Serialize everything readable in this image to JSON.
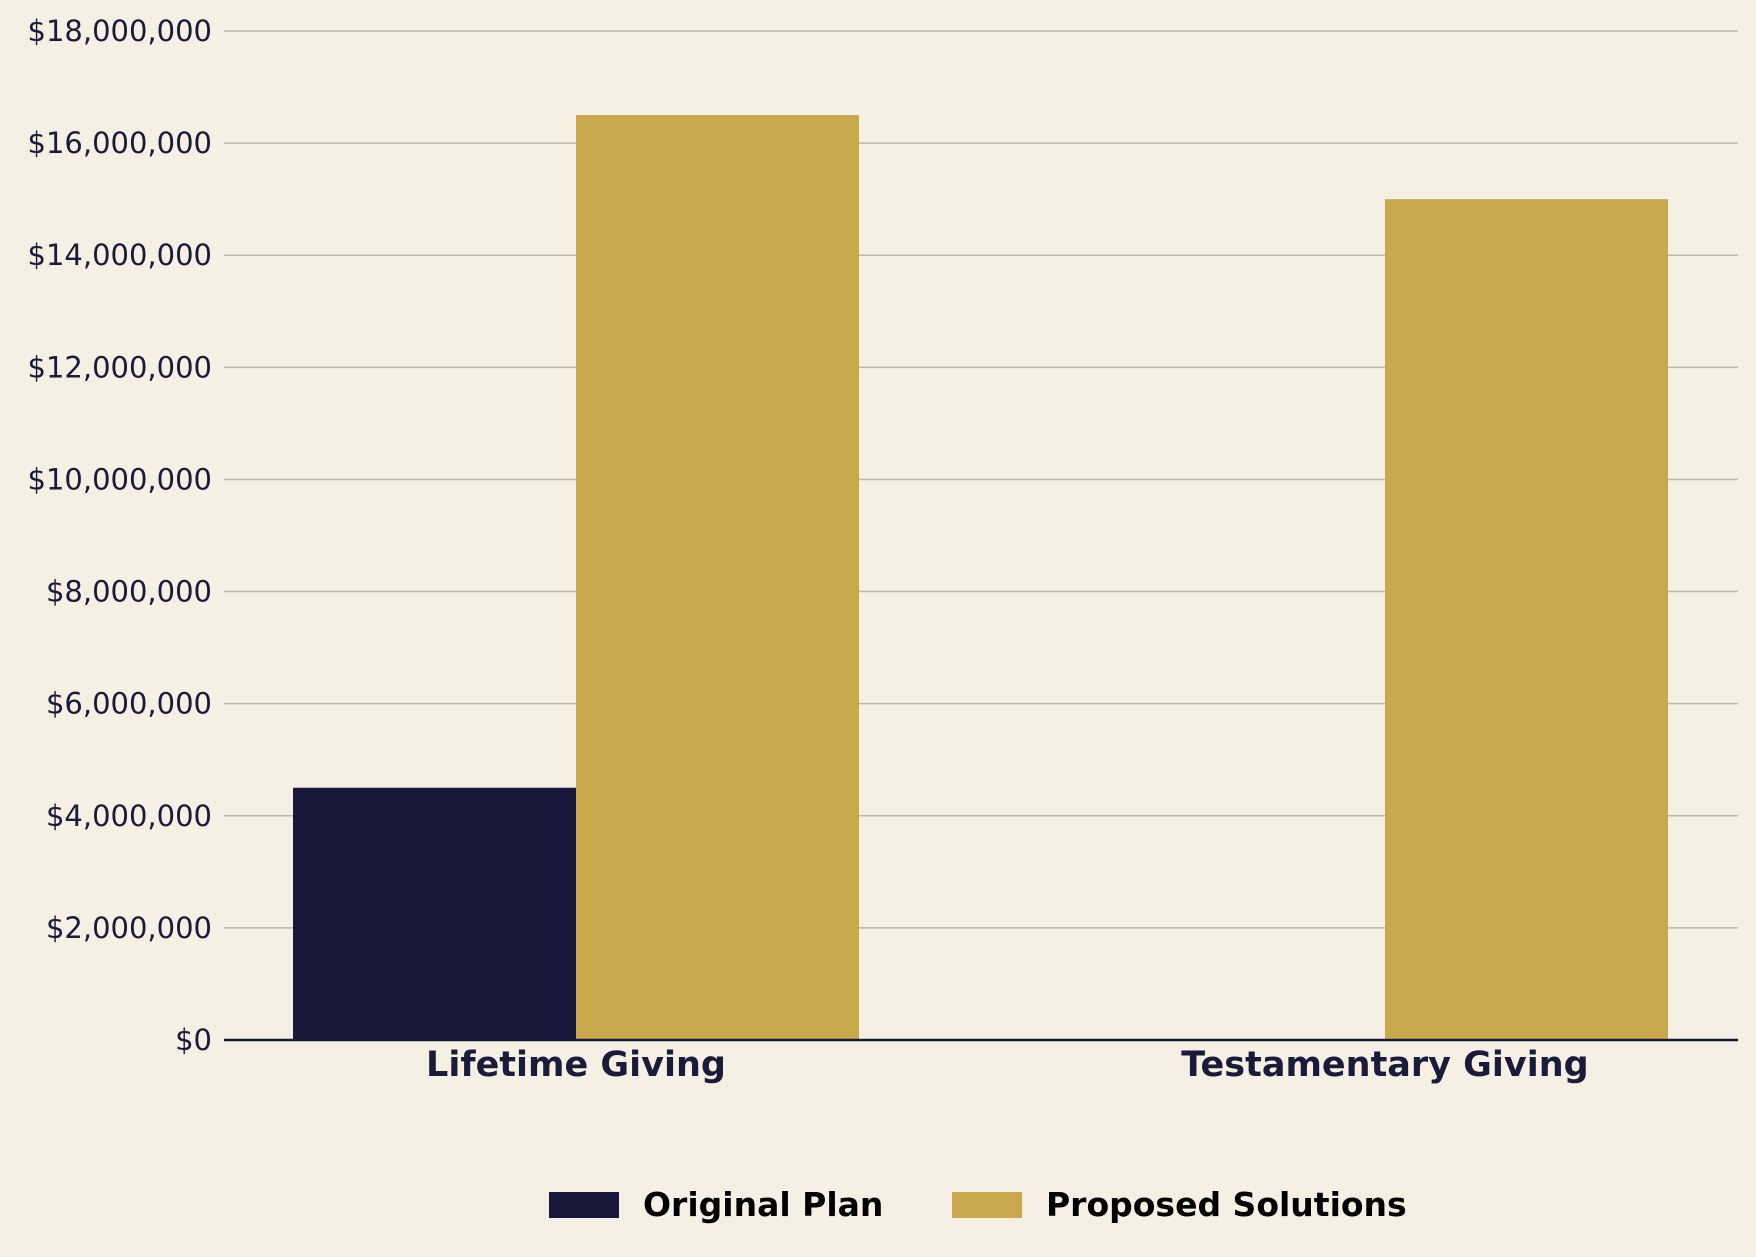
{
  "chart_data": {
    "type": "bar",
    "categories": [
      "Lifetime Giving",
      "Testamentary Giving"
    ],
    "series": [
      {
        "name": "Original Plan",
        "values": [
          4500000,
          0
        ],
        "color": "#19183a"
      },
      {
        "name": "Proposed Solutions",
        "values": [
          16500000,
          15000000
        ],
        "color": "#c9a74d"
      }
    ],
    "ylim": [
      0,
      18000000
    ],
    "yticks": [
      0,
      2000000,
      4000000,
      6000000,
      8000000,
      10000000,
      12000000,
      14000000,
      16000000,
      18000000
    ],
    "ytick_labels": [
      "$0",
      "$2,000,000",
      "$4,000,000",
      "$6,000,000",
      "$8,000,000",
      "$10,000,000",
      "$12,000,000",
      "$14,000,000",
      "$16,000,000",
      "$18,000,000"
    ],
    "grid": true,
    "legend_position": "bottom-center",
    "background": "#f5efe4",
    "grid_color": "#bdb8a8",
    "axis_color": "#1a1a3a"
  }
}
